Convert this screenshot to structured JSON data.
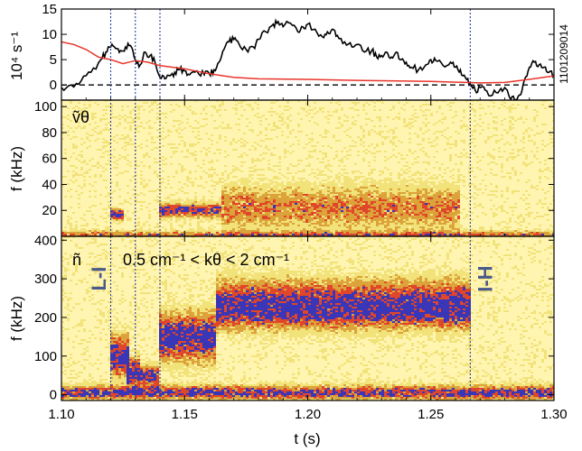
{
  "chart_data": [
    {
      "type": "line",
      "panel": "top",
      "ylabel": "10⁴ s⁻¹",
      "shot_label": "1101209014",
      "ylim": [
        -3,
        15
      ],
      "yticks": [
        "15",
        "10",
        "5",
        "0"
      ],
      "ytick_values": [
        15,
        10,
        5,
        0
      ],
      "reference_line": {
        "y": 0,
        "style": "dashed"
      },
      "series": [
        {
          "color": "#000000",
          "points": [
            [
              1.1,
              -0.5
            ],
            [
              1.104,
              0
            ],
            [
              1.108,
              0.8
            ],
            [
              1.112,
              2.5
            ],
            [
              1.116,
              5
            ],
            [
              1.118,
              6.5
            ],
            [
              1.12,
              7.5
            ],
            [
              1.122,
              7.2
            ],
            [
              1.124,
              6.8
            ],
            [
              1.126,
              7.5
            ],
            [
              1.128,
              7.8
            ],
            [
              1.13,
              5
            ],
            [
              1.132,
              4
            ],
            [
              1.134,
              6.5
            ],
            [
              1.136,
              5.8
            ],
            [
              1.138,
              4.5
            ],
            [
              1.14,
              1.5
            ],
            [
              1.142,
              1.2
            ],
            [
              1.144,
              1.8
            ],
            [
              1.146,
              2.5
            ],
            [
              1.148,
              3
            ],
            [
              1.15,
              2.8
            ],
            [
              1.152,
              2
            ],
            [
              1.155,
              2.8
            ],
            [
              1.158,
              2
            ],
            [
              1.16,
              2.2
            ],
            [
              1.162,
              3
            ],
            [
              1.164,
              4.5
            ],
            [
              1.166,
              7
            ],
            [
              1.168,
              8.5
            ],
            [
              1.17,
              9
            ],
            [
              1.172,
              8.2
            ],
            [
              1.175,
              7
            ],
            [
              1.178,
              7.5
            ],
            [
              1.18,
              9
            ],
            [
              1.183,
              10.5
            ],
            [
              1.186,
              12
            ],
            [
              1.188,
              12.5
            ],
            [
              1.19,
              11.5
            ],
            [
              1.193,
              12.2
            ],
            [
              1.196,
              10.5
            ],
            [
              1.198,
              11.5
            ],
            [
              1.2,
              12
            ],
            [
              1.203,
              11
            ],
            [
              1.206,
              9.5
            ],
            [
              1.208,
              10.5
            ],
            [
              1.21,
              11
            ],
            [
              1.212,
              9.8
            ],
            [
              1.215,
              8.5
            ],
            [
              1.218,
              7.5
            ],
            [
              1.22,
              8
            ],
            [
              1.223,
              6.5
            ],
            [
              1.226,
              6.8
            ],
            [
              1.228,
              5.5
            ],
            [
              1.23,
              5.8
            ],
            [
              1.232,
              6.5
            ],
            [
              1.234,
              5.5
            ],
            [
              1.236,
              6.5
            ],
            [
              1.238,
              5
            ],
            [
              1.24,
              4.5
            ],
            [
              1.242,
              3.5
            ],
            [
              1.245,
              3
            ],
            [
              1.248,
              4
            ],
            [
              1.25,
              5
            ],
            [
              1.252,
              4.8
            ],
            [
              1.255,
              3.8
            ],
            [
              1.258,
              4.5
            ],
            [
              1.26,
              3.5
            ],
            [
              1.262,
              3
            ],
            [
              1.264,
              1.5
            ],
            [
              1.266,
              0.2
            ],
            [
              1.268,
              -1
            ],
            [
              1.27,
              -0.5
            ],
            [
              1.272,
              -1
            ],
            [
              1.275,
              -2
            ],
            [
              1.278,
              -1
            ],
            [
              1.28,
              -0.5
            ],
            [
              1.282,
              -2.5
            ],
            [
              1.284,
              -3
            ],
            [
              1.286,
              -2
            ],
            [
              1.288,
              1
            ],
            [
              1.29,
              3.5
            ],
            [
              1.292,
              4.5
            ],
            [
              1.294,
              4
            ],
            [
              1.296,
              3.5
            ],
            [
              1.298,
              2.5
            ],
            [
              1.3,
              2
            ]
          ]
        },
        {
          "color": "#e8352a",
          "points": [
            [
              1.1,
              8.5
            ],
            [
              1.105,
              8
            ],
            [
              1.11,
              7
            ],
            [
              1.115,
              5.5
            ],
            [
              1.12,
              5
            ],
            [
              1.125,
              4.2
            ],
            [
              1.13,
              4.8
            ],
            [
              1.135,
              4.5
            ],
            [
              1.14,
              3.8
            ],
            [
              1.15,
              3.2
            ],
            [
              1.16,
              2.2
            ],
            [
              1.17,
              1.5
            ],
            [
              1.18,
              1.2
            ],
            [
              1.2,
              1.1
            ],
            [
              1.22,
              0.9
            ],
            [
              1.25,
              0.7
            ],
            [
              1.27,
              0.4
            ],
            [
              1.28,
              0.5
            ],
            [
              1.29,
              1.1
            ],
            [
              1.3,
              1.8
            ]
          ]
        }
      ]
    },
    {
      "type": "heatmap",
      "panel": "middle",
      "ylabel": "f (kHz)",
      "label": "ṽθ",
      "ylim": [
        0,
        105
      ],
      "yticks": [
        "100",
        "80",
        "60",
        "40",
        "20"
      ],
      "ytick_values": [
        100,
        80,
        60,
        40,
        20
      ],
      "features": [
        {
          "t_start": 1.12,
          "t_end": 1.125,
          "f_center": 17,
          "f_width": 4,
          "intensity": 1.0
        },
        {
          "t_start": 1.14,
          "t_end": 1.165,
          "f_center": 20,
          "f_width": 5,
          "intensity": 0.9
        },
        {
          "t_start": 1.165,
          "t_end": 1.262,
          "f_center": 22,
          "f_width": 16,
          "intensity": 0.55
        },
        {
          "t_start": 1.1,
          "t_end": 1.3,
          "f_center": 1,
          "f_width": 3,
          "intensity": 0.6
        }
      ]
    },
    {
      "type": "heatmap",
      "panel": "bottom",
      "ylabel": "f (kHz)",
      "label": "ñ",
      "annotation": "0.5 cm⁻¹ < kθ < 2 cm⁻¹",
      "ylim": [
        -15,
        410
      ],
      "yticks": [
        "400",
        "300",
        "200",
        "100",
        "0"
      ],
      "ytick_values": [
        400,
        300,
        200,
        100,
        0
      ],
      "features": [
        {
          "t_start": 1.12,
          "t_end": 1.128,
          "f_center": 100,
          "f_width": 50,
          "intensity": 1.0
        },
        {
          "t_start": 1.126,
          "t_end": 1.132,
          "f_center": 60,
          "f_width": 35,
          "intensity": 1.0
        },
        {
          "t_start": 1.132,
          "t_end": 1.14,
          "f_center": 50,
          "f_width": 25,
          "intensity": 0.9
        },
        {
          "t_start": 1.14,
          "t_end": 1.163,
          "f_center": 150,
          "f_width": 60,
          "intensity": 1.0
        },
        {
          "t_start": 1.163,
          "t_end": 1.266,
          "f_center": 215,
          "f_width": 45,
          "intensity": 0.9
        },
        {
          "t_start": 1.163,
          "t_end": 1.266,
          "f_center": 270,
          "f_width": 40,
          "intensity": 0.45
        },
        {
          "t_start": 1.1,
          "t_end": 1.3,
          "f_center": 5,
          "f_width": 18,
          "intensity": 0.85
        }
      ]
    }
  ],
  "x_axis": {
    "label": "t (s)",
    "xlim": [
      1.1,
      1.3
    ],
    "ticks": [
      "1.10",
      "1.15",
      "1.20",
      "1.25",
      "1.30"
    ],
    "tick_values": [
      1.1,
      1.15,
      1.2,
      1.25,
      1.3
    ]
  },
  "vertical_lines": [
    1.12,
    1.13,
    1.14,
    1.266
  ],
  "transitions": [
    {
      "text": "L-I",
      "t": 1.115
    },
    {
      "text": "I-H",
      "t": 1.272
    }
  ],
  "colors": {
    "background": "#fff5b0",
    "low": "#f2e27a",
    "mid": "#dca33a",
    "high": "#e0462a",
    "peak": "#3a36b8",
    "vline": "#2c3e9a",
    "transition_text": "#4a5a8a"
  }
}
